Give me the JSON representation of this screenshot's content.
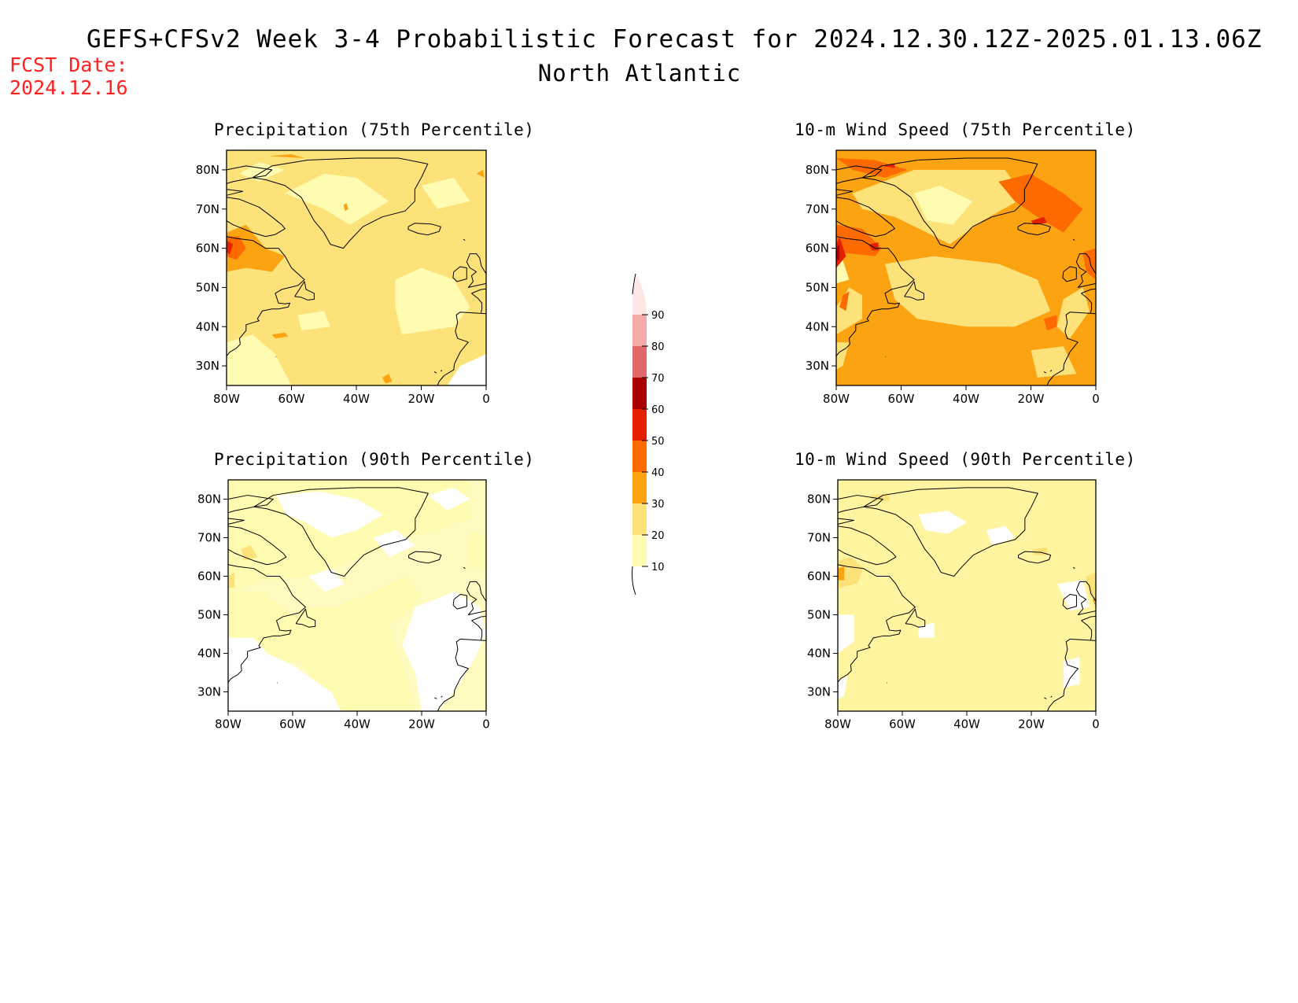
{
  "header": {
    "title": "GEFS+CFSv2 Week 3-4 Probabilistic Forecast for 2024.12.30.12Z-2025.01.13.06Z",
    "subtitle": "North Atlantic",
    "fcst_label": "FCST Date:",
    "fcst_date": "2024.12.16"
  },
  "axes": {
    "lat_ticks": [
      "80N",
      "70N",
      "60N",
      "50N",
      "40N",
      "30N"
    ],
    "lon_ticks": [
      "80W",
      "60W",
      "40W",
      "20W",
      "0"
    ]
  },
  "panels": [
    {
      "id": "precip75",
      "title": "Precipitation (75th Percentile)",
      "base_color": "#fde27a"
    },
    {
      "id": "wind75",
      "title": "10-m Wind Speed (75th Percentile)",
      "base_color": "#fca312"
    },
    {
      "id": "precip90",
      "title": "Precipitation (90th Percentile)",
      "base_color": "#fffbc0"
    },
    {
      "id": "wind90",
      "title": "10-m Wind Speed (90th Percentile)",
      "base_color": "#fff5a0"
    }
  ],
  "colorbar": {
    "levels": [
      "10",
      "20",
      "30",
      "40",
      "50",
      "60",
      "70",
      "80",
      "90"
    ],
    "colors": [
      "#fffbb0",
      "#fde27a",
      "#fca312",
      "#fc6a00",
      "#e42000",
      "#a80000",
      "#e06868",
      "#f4a8a8",
      "#fde6e6"
    ]
  }
}
